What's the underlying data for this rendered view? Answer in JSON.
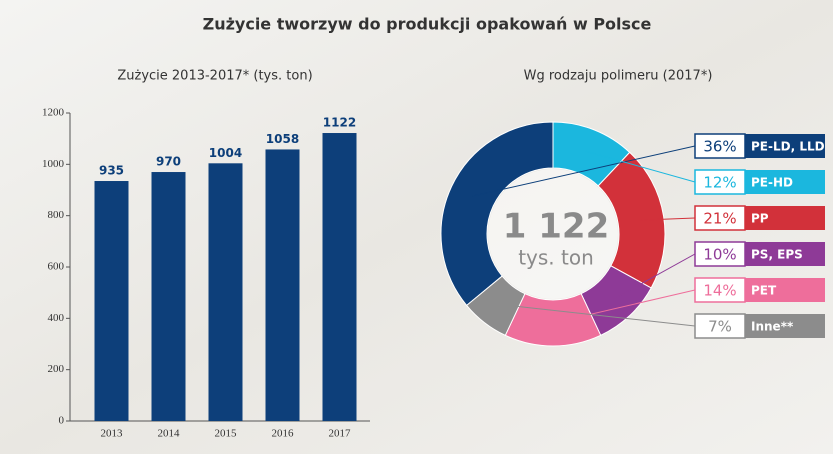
{
  "title": "Zużycie tworzyw do produkcji opakowań w Polsce",
  "chart_data": [
    {
      "type": "bar",
      "title": "Zużycie 2013-2017* (tys. ton)",
      "categories": [
        "2013",
        "2014",
        "2015",
        "2016",
        "2017"
      ],
      "values": [
        935,
        970,
        1004,
        1058,
        1122
      ],
      "color": "#0d3f7a",
      "ylim": [
        0,
        1200
      ],
      "yticks": [
        0,
        200,
        400,
        600,
        800,
        1000,
        1200
      ]
    },
    {
      "type": "donut",
      "title": "Wg rodzaju polimeru (2017*)",
      "center_label": "1 122",
      "center_sublabel": "tys. ton",
      "categories": [
        "PE-LD, LLD",
        "PE-HD",
        "PP",
        "PS, EPS",
        "PET",
        "Inne**"
      ],
      "values": [
        36,
        12,
        21,
        10,
        14,
        7
      ],
      "value_labels": [
        "36%",
        "12%",
        "21%",
        "10%",
        "14%",
        "7%"
      ],
      "colors": [
        "#0d3f7a",
        "#1bb7de",
        "#d2313a",
        "#8e3a97",
        "#ee6e9b",
        "#8c8c8c"
      ]
    }
  ]
}
